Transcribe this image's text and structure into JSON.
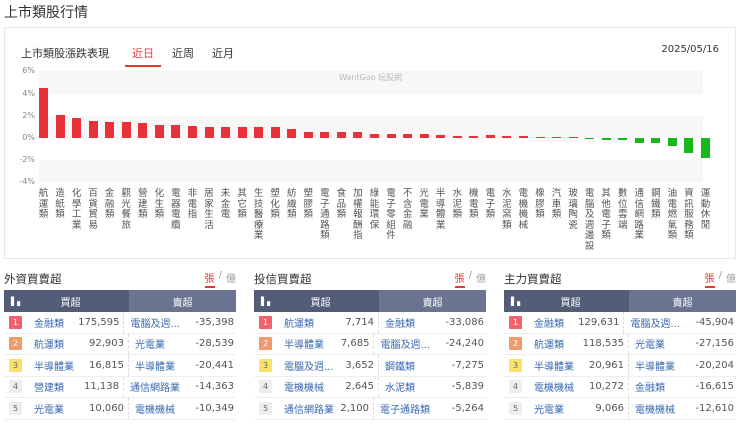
{
  "page": {
    "title": "上市類股行情"
  },
  "chart_section": {
    "title": "上市類股漲跌表現",
    "tabs": [
      {
        "label": "近日",
        "active": true
      },
      {
        "label": "近周",
        "active": false
      },
      {
        "label": "近月",
        "active": false
      }
    ],
    "date": "2025/05/16",
    "watermark": "WantGoo 玩股網"
  },
  "chart_data": {
    "type": "bar",
    "title": "上市類股漲跌表現",
    "xlabel": "",
    "ylabel": "",
    "ylim": [
      -4,
      6
    ],
    "yticks": [
      "6%",
      "4%",
      "2%",
      "0%",
      "-2%",
      "-4%"
    ],
    "colors": {
      "up": "#e8323a",
      "down": "#18b818"
    },
    "categories": [
      "航運類",
      "造紙類",
      "化學工業",
      "百貨貿易",
      "金融類",
      "觀光餐旅",
      "營建類",
      "化生類",
      "電器電纜",
      "非電指",
      "居家生活",
      "未金電",
      "其它類",
      "生技醫療業",
      "塑化類",
      "紡織類",
      "塑膠類",
      "電子通路類",
      "食品類",
      "加權報酬指",
      "綠能環保",
      "電子零組件",
      "不含金融",
      "光電業",
      "半導體業",
      "水泥類",
      "機電類",
      "電子類",
      "水泥窯類",
      "電機機械",
      "橡膠類",
      "汽車類",
      "玻璃陶瓷",
      "電腦及週邊設",
      "其他電子類",
      "數位雲端",
      "通信網路業",
      "鋼鐵類",
      "油電燃氣類",
      "資訊服務類",
      "運動休閒"
    ],
    "values": [
      4.5,
      2.1,
      1.8,
      1.5,
      1.45,
      1.4,
      1.35,
      1.2,
      1.15,
      1.1,
      1.0,
      0.95,
      0.95,
      1.0,
      1.0,
      0.8,
      0.55,
      0.55,
      0.55,
      0.5,
      0.4,
      0.4,
      0.4,
      0.35,
      0.3,
      0.15,
      0.15,
      0.25,
      0.2,
      0.15,
      0.05,
      0.03,
      0.03,
      -0.05,
      -0.2,
      -0.2,
      -0.45,
      -0.45,
      -0.75,
      -1.35,
      -1.8
    ]
  },
  "panels": [
    {
      "title": "外資買賣超",
      "units": [
        "張",
        "億"
      ],
      "header": {
        "buy": "買超",
        "sell": "賣超"
      },
      "rows": [
        {
          "rank": "1",
          "buy_name": "金融類",
          "buy_val": "175,595",
          "sell_name": "電腦及週...",
          "sell_val": "-35,398"
        },
        {
          "rank": "2",
          "buy_name": "航運類",
          "buy_val": "92,903",
          "sell_name": "光電業",
          "sell_val": "-28,539"
        },
        {
          "rank": "3",
          "buy_name": "半導體業",
          "buy_val": "16,815",
          "sell_name": "半導體業",
          "sell_val": "-20,441"
        },
        {
          "rank": "4",
          "buy_name": "營建類",
          "buy_val": "11,138",
          "sell_name": "通信網路業",
          "sell_val": "-14,363"
        },
        {
          "rank": "5",
          "buy_name": "光電業",
          "buy_val": "10,060",
          "sell_name": "電機機械",
          "sell_val": "-10,349"
        }
      ]
    },
    {
      "title": "投信買賣超",
      "units": [
        "張",
        "億"
      ],
      "header": {
        "buy": "買超",
        "sell": "賣超"
      },
      "rows": [
        {
          "rank": "1",
          "buy_name": "航運類",
          "buy_val": "7,714",
          "sell_name": "金融類",
          "sell_val": "-33,086"
        },
        {
          "rank": "2",
          "buy_name": "半導體業",
          "buy_val": "7,685",
          "sell_name": "電腦及週...",
          "sell_val": "-24,240"
        },
        {
          "rank": "3",
          "buy_name": "電腦及週...",
          "buy_val": "3,652",
          "sell_name": "鋼鐵類",
          "sell_val": "-7,275"
        },
        {
          "rank": "4",
          "buy_name": "電機機械",
          "buy_val": "2,645",
          "sell_name": "水泥類",
          "sell_val": "-5,839"
        },
        {
          "rank": "5",
          "buy_name": "通信網路業",
          "buy_val": "2,100",
          "sell_name": "電子通路類",
          "sell_val": "-5,264"
        }
      ]
    },
    {
      "title": "主力買賣超",
      "units": [
        "張",
        "億"
      ],
      "header": {
        "buy": "買超",
        "sell": "賣超"
      },
      "rows": [
        {
          "rank": "1",
          "buy_name": "金融類",
          "buy_val": "129,631",
          "sell_name": "電腦及週...",
          "sell_val": "-45,904"
        },
        {
          "rank": "2",
          "buy_name": "航運類",
          "buy_val": "118,535",
          "sell_name": "光電業",
          "sell_val": "-27,156"
        },
        {
          "rank": "3",
          "buy_name": "半導體業",
          "buy_val": "20,961",
          "sell_name": "半導體業",
          "sell_val": "-20,204"
        },
        {
          "rank": "4",
          "buy_name": "電機機械",
          "buy_val": "10,272",
          "sell_name": "金融類",
          "sell_val": "-16,615"
        },
        {
          "rank": "5",
          "buy_name": "光電業",
          "buy_val": "9,066",
          "sell_name": "電機機械",
          "sell_val": "-12,610"
        }
      ]
    }
  ]
}
